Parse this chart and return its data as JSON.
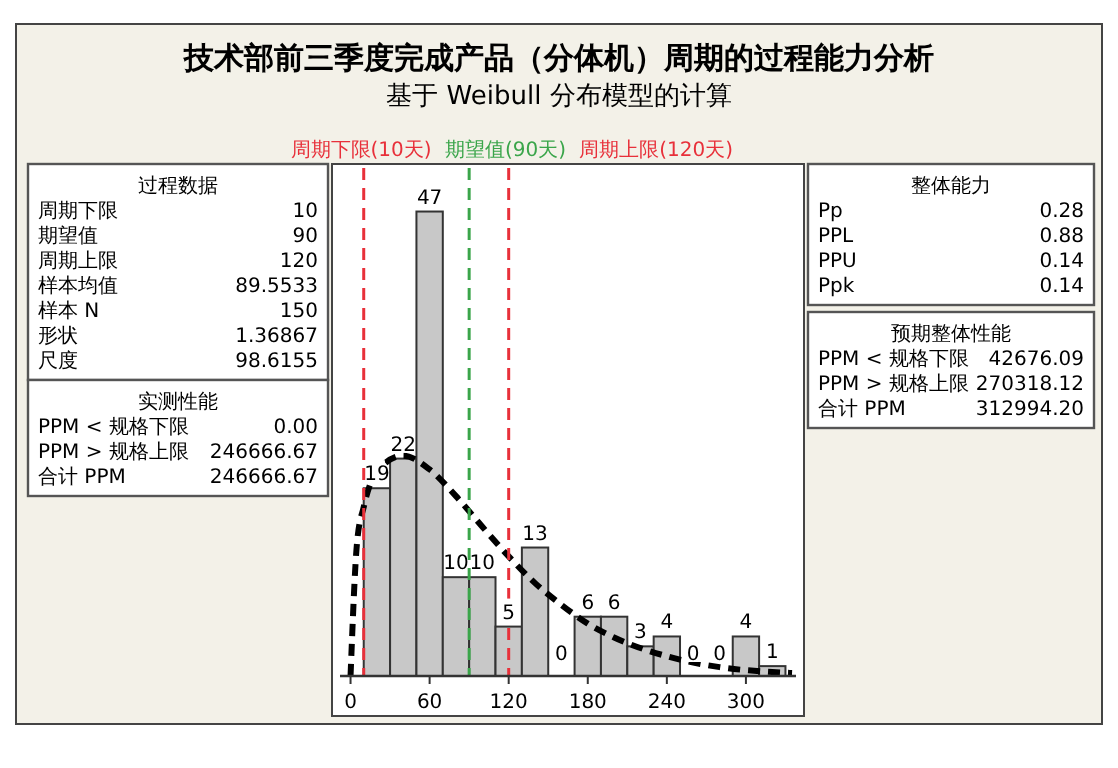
{
  "chart_data": {
    "type": "histogram",
    "title": "技术部前三季度完成产品（分体机）周期的过程能力分析",
    "subtitle": "基于 Weibull 分布模型的计算",
    "bins": [
      10,
      30,
      50,
      70,
      90,
      110,
      130,
      150,
      170,
      190,
      210,
      230,
      250,
      270,
      290,
      310,
      330
    ],
    "values": [
      19,
      22,
      47,
      10,
      10,
      5,
      13,
      0,
      6,
      6,
      3,
      4,
      0,
      0,
      4,
      1
    ],
    "value_labels": [
      "19",
      "22",
      "47",
      "10",
      "10",
      "5",
      "13",
      "0",
      "6",
      "6",
      "3",
      "4",
      "0",
      "0",
      "4",
      "1"
    ],
    "color": "#c8c8c8",
    "series": [
      {
        "type": "line",
        "color": "#000000",
        "line_style": "dashed",
        "x": [
          0,
          5,
          10,
          20,
          40,
          60,
          80,
          100,
          120,
          140,
          160,
          180,
          200,
          240,
          280,
          320,
          335
        ],
        "values": [
          0,
          13.6,
          17.1,
          20.7,
          22.3,
          20.9,
          18.2,
          15.1,
          12.1,
          9.4,
          7.2,
          5.3,
          3.9,
          2.0,
          0.9,
          0.4,
          0.3
        ]
      }
    ],
    "xlim": [
      -8,
      338
    ],
    "xticks": [
      0,
      60,
      120,
      180,
      240,
      300
    ],
    "ylim": [
      0,
      51
    ],
    "tick_labels": "x",
    "ref_lines": [
      {
        "axis": "x",
        "value": 10,
        "label": "周期下限(10天)",
        "color": "#e8303a",
        "line_style": "dashed"
      },
      {
        "axis": "x",
        "value": 90,
        "label": "期望值(90天)",
        "color": "#3aa54a",
        "line_style": "dashed"
      },
      {
        "axis": "x",
        "value": 120,
        "label": "周期上限(120天)",
        "color": "#e8303a",
        "line_style": "dashed"
      }
    ],
    "annotations": [
      "过程数据",
      "周期下限  10",
      "期望值  90",
      "周期上限  120",
      "样本均值  89.5533",
      "样本 N  150",
      "形状  1.36867",
      "尺度  98.6155",
      "实测性能",
      "PPM < 规格下限  0.00",
      "PPM > 规格上限  246666.67",
      "合计 PPM  246666.67",
      "整体能力",
      "Pp  0.28",
      "PPL  0.88",
      "PPU  0.14",
      "Ppk  0.14",
      "预期整体性能",
      "PPM < 规格下限  42676.09",
      "PPM > 规格上限  270318.12",
      "合计 PPM  312994.20"
    ]
  }
}
